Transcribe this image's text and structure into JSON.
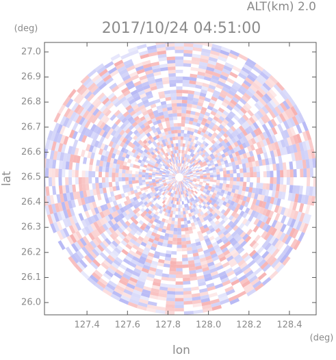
{
  "chart_data": {
    "type": "radar-ppi",
    "title": "2017/10/24 04:51:00",
    "subtitle": "ALT(km) 2.0",
    "x_label": "lon",
    "y_label": "lat",
    "x_unit": "(deg)",
    "y_unit": "(deg)",
    "xlim": [
      127.19,
      128.532
    ],
    "ylim": [
      25.951,
      27.038
    ],
    "xticks": [
      127.4,
      127.6,
      127.8,
      {
        "value": 128.0,
        "label": "128.0"
      },
      128.2,
      128.4
    ],
    "yticks": [
      {
        "value": 26.0,
        "label": "26.0"
      },
      26.1,
      26.2,
      26.3,
      26.4,
      26.5,
      26.6,
      26.7,
      26.8,
      26.9,
      {
        "value": 27.0,
        "label": "27.0"
      }
    ],
    "colors": [
      "#f6a9a9",
      "#aeb0f4"
    ]
  }
}
